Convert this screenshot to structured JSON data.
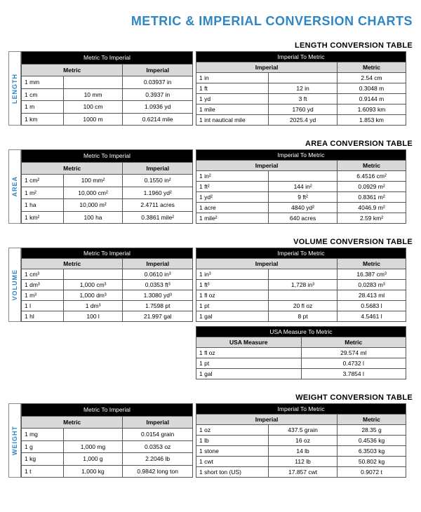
{
  "page_title": "METRIC & IMPERIAL CONVERSION CHARTS",
  "colors": {
    "accent": "#2f86c5",
    "header_black": "#000000",
    "header_grey": "#d9d9d9",
    "border": "#555555",
    "bg": "#ffffff"
  },
  "sections": [
    {
      "sideLabel": "LENGTH",
      "title": "LENGTH CONVERSION TABLE",
      "left": {
        "header": "Metric To Imperial",
        "cols": [
          "Metric",
          "",
          "Imperial"
        ],
        "rows": [
          [
            "1 mm",
            "",
            "0.03937 in"
          ],
          [
            "1 cm",
            "10 mm",
            "0.3937 in"
          ],
          [
            "1 m",
            "100 cm",
            "1.0936 yd"
          ],
          [
            "1 km",
            "1000 m",
            "0.6214 mile"
          ]
        ]
      },
      "right": {
        "header": "Imperial To Metric",
        "cols": [
          "Imperial",
          "",
          "Metric"
        ],
        "rows": [
          [
            "1 in",
            "",
            "2.54 cm"
          ],
          [
            "1 ft",
            "12 in",
            "0.3048 m"
          ],
          [
            "1 yd",
            "3 ft",
            "0.9144 m"
          ],
          [
            "1 mile",
            "1760 yd",
            "1.6093 km"
          ],
          [
            "1 int nautical mile",
            "2025.4 yd",
            "1.853 km"
          ]
        ]
      }
    },
    {
      "sideLabel": "AREA",
      "title": "AREA CONVERSION TABLE",
      "left": {
        "header": "Metric To Imperial",
        "cols": [
          "Metric",
          "",
          "Imperial"
        ],
        "rows": [
          [
            "1 cm²",
            "100 mm²",
            "0.1550 in²"
          ],
          [
            "1 m²",
            "10,000 cm²",
            "1.1960 yd²"
          ],
          [
            "1 ha",
            "10,000 m²",
            "2.4711 acres"
          ],
          [
            "1 km²",
            "100 ha",
            "0.3861 mile²"
          ]
        ]
      },
      "right": {
        "header": "Imperial To Metric",
        "cols": [
          "Imperial",
          "",
          "Metric"
        ],
        "rows": [
          [
            "1 in²",
            "",
            "6.4516 cm²"
          ],
          [
            "1 ft²",
            "144 in²",
            "0.0929 m²"
          ],
          [
            "1 yd²",
            "9 ft²",
            "0.8361 m²"
          ],
          [
            "1 acre",
            "4840 yd²",
            "4046.9 m²"
          ],
          [
            "1 mile²",
            "640 acres",
            "2.59 km²"
          ]
        ]
      }
    },
    {
      "sideLabel": "VOLUME",
      "title": "VOLUME CONVERSION TABLE",
      "left": {
        "header": "Metric To Imperial",
        "cols": [
          "Metric",
          "",
          "Imperial"
        ],
        "rows": [
          [
            "1 cm³",
            "",
            "0.0610 in³"
          ],
          [
            "1 dm³",
            "1,000 cm³",
            "0.0353 ft³"
          ],
          [
            "1 m³",
            "1,000 dm³",
            "1.3080 yd³"
          ],
          [
            "1 l",
            "1 dm³",
            "1.7598 pt"
          ],
          [
            "1 hl",
            "100 l",
            "21.997 gal"
          ]
        ]
      },
      "right": {
        "header": "Imperial To Metric",
        "cols": [
          "Imperial",
          "",
          "Metric"
        ],
        "rows": [
          [
            "1 in³",
            "",
            "16.387 cm³"
          ],
          [
            "1 ft³",
            "1,728 in³",
            "0.0283 m³"
          ],
          [
            "1 fl oz",
            "",
            "28.413 ml"
          ],
          [
            "1 pt",
            "20 fl oz",
            "0.5683 l"
          ],
          [
            "1 gal",
            "8 pt",
            "4.5461 l"
          ]
        ]
      },
      "usa": {
        "header": "USA Measure To Metric",
        "cols": [
          "USA Measure",
          "Metric"
        ],
        "rows": [
          [
            "1 fl oz",
            "29.574 ml"
          ],
          [
            "1 pt",
            "0.4732 l"
          ],
          [
            "1 gal",
            "3.7854 l"
          ]
        ]
      }
    },
    {
      "sideLabel": "WEIGHT",
      "title": "WEIGHT CONVERSION TABLE",
      "left": {
        "header": "Metric To Imperial",
        "cols": [
          "Metric",
          "",
          "Imperial"
        ],
        "rows": [
          [
            "1 mg",
            "",
            "0.0154 grain"
          ],
          [
            "1 g",
            "1,000 mg",
            "0.0353 oz"
          ],
          [
            "1 kg",
            "1,000 g",
            "2.2046 lb"
          ],
          [
            "1 t",
            "1,000 kg",
            "0.9842 long ton"
          ]
        ]
      },
      "right": {
        "header": "Imperial To Metric",
        "cols": [
          "Imperial",
          "",
          "Metric"
        ],
        "rows": [
          [
            "1 oz",
            "437.5 grain",
            "28.35 g"
          ],
          [
            "1 lb",
            "16 oz",
            "0.4536 kg"
          ],
          [
            "1 stone",
            "14 lb",
            "6.3503 kg"
          ],
          [
            "1 cwt",
            "112 lb",
            "50.802 kg"
          ],
          [
            "1 short ton (US)",
            "17.857 cwt",
            "0.9072 t"
          ]
        ]
      }
    }
  ]
}
